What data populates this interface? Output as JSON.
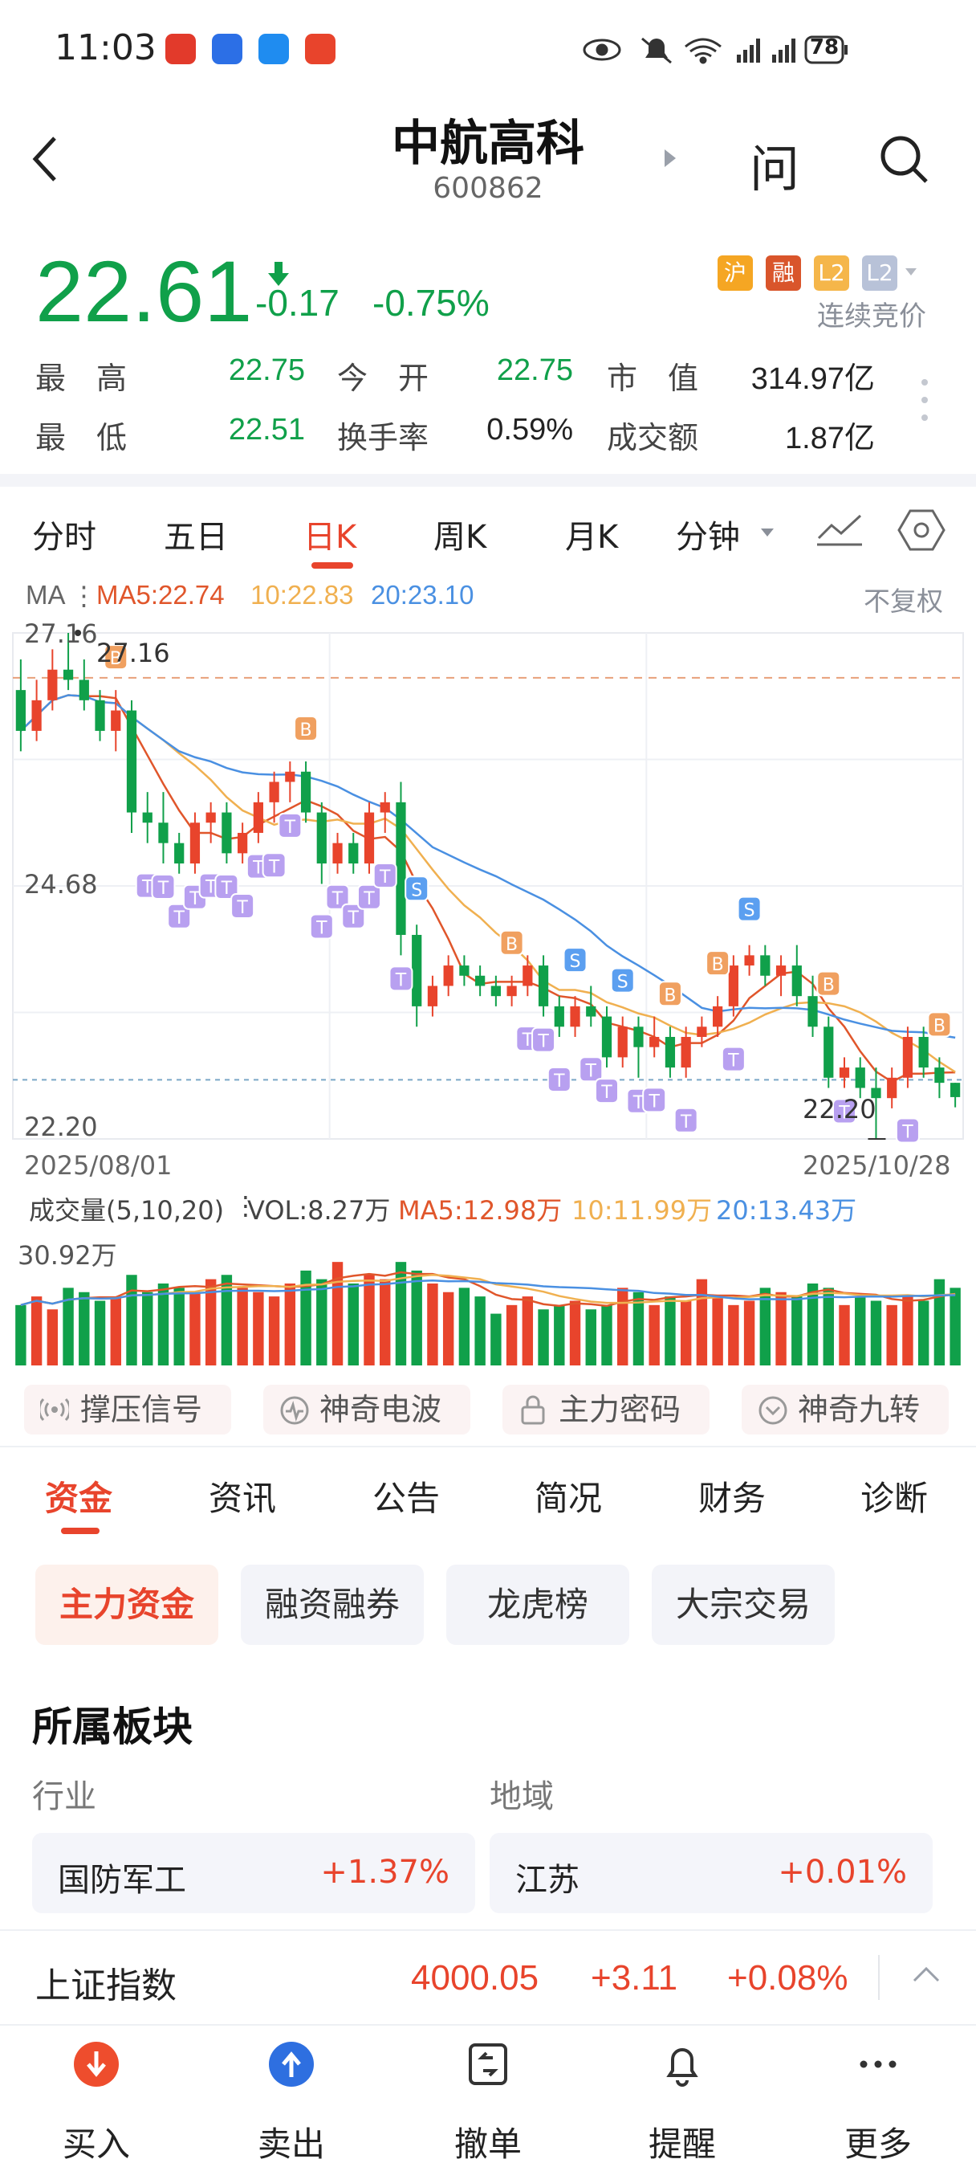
{
  "status_bar": {
    "time": "11:03",
    "battery": "78"
  },
  "header": {
    "title": "中航高科",
    "code": "600862",
    "ask_icon_label": "问"
  },
  "quote": {
    "price": "22.61",
    "change": "-0.17",
    "change_pct": "-0.75%",
    "badges": [
      "沪",
      "融",
      "L2",
      "L2"
    ],
    "auction_status": "连续竞价",
    "stats": [
      {
        "label": "最　高",
        "value": "22.75"
      },
      {
        "label": "今　开",
        "value": "22.75"
      },
      {
        "label": "市　值",
        "value": "314.97亿"
      },
      {
        "label": "最　低",
        "value": "22.51"
      },
      {
        "label": "换手率",
        "value": "0.59%"
      },
      {
        "label": "成交额",
        "value": "1.87亿"
      }
    ]
  },
  "chart_tabs": [
    "分时",
    "五日",
    "日K",
    "周K",
    "月K",
    "分钟"
  ],
  "active_chart_tab": "日K",
  "ma_legend": {
    "prefix": "MA",
    "ma5": "MA5:22.74",
    "ma10": "10:22.83",
    "ma20": "20:23.10",
    "adjust": "不复权"
  },
  "colors": {
    "up": "#e8442c",
    "down": "#10a04a",
    "ma5": "#e0562b",
    "ma10": "#f0b050",
    "ma20": "#4a90e2",
    "accent": "#e8442c"
  },
  "chart_data": {
    "type": "candlestick",
    "y_labels": [
      "27.16",
      "24.68",
      "22.20"
    ],
    "high_marker": "27.16",
    "low_marker": "22.20",
    "x_labels": [
      "2025/08/01",
      "2025/10/28"
    ],
    "ylim": [
      22.2,
      27.16
    ],
    "ohlc": [
      [
        26.6,
        26.9,
        26.0,
        26.2
      ],
      [
        26.2,
        26.7,
        26.1,
        26.5
      ],
      [
        26.5,
        27.0,
        26.4,
        26.8
      ],
      [
        26.8,
        27.16,
        26.6,
        26.7
      ],
      [
        26.7,
        26.9,
        26.4,
        26.5
      ],
      [
        26.5,
        26.6,
        26.1,
        26.2
      ],
      [
        26.2,
        26.6,
        26.0,
        26.4
      ],
      [
        26.4,
        26.5,
        25.2,
        25.4
      ],
      [
        25.4,
        25.6,
        25.1,
        25.3
      ],
      [
        25.3,
        25.6,
        24.9,
        25.1
      ],
      [
        25.1,
        25.2,
        24.8,
        24.9
      ],
      [
        24.9,
        25.4,
        24.8,
        25.3
      ],
      [
        25.3,
        25.5,
        25.1,
        25.4
      ],
      [
        25.4,
        25.5,
        24.9,
        25.0
      ],
      [
        25.0,
        25.3,
        24.9,
        25.2
      ],
      [
        25.2,
        25.6,
        25.1,
        25.5
      ],
      [
        25.5,
        25.8,
        25.3,
        25.7
      ],
      [
        25.7,
        25.9,
        25.5,
        25.8
      ],
      [
        25.8,
        25.9,
        25.3,
        25.4
      ],
      [
        25.4,
        25.5,
        24.7,
        24.9
      ],
      [
        24.9,
        25.2,
        24.8,
        25.1
      ],
      [
        25.1,
        25.2,
        24.8,
        24.9
      ],
      [
        24.9,
        25.5,
        24.8,
        25.4
      ],
      [
        25.4,
        25.6,
        25.2,
        25.5
      ],
      [
        25.5,
        25.7,
        24.0,
        24.2
      ],
      [
        24.2,
        24.3,
        23.3,
        23.5
      ],
      [
        23.5,
        23.8,
        23.4,
        23.7
      ],
      [
        23.7,
        24.0,
        23.6,
        23.9
      ],
      [
        23.9,
        24.0,
        23.7,
        23.8
      ],
      [
        23.8,
        23.9,
        23.6,
        23.7
      ],
      [
        23.7,
        23.8,
        23.5,
        23.6
      ],
      [
        23.6,
        23.8,
        23.5,
        23.7
      ],
      [
        23.7,
        24.0,
        23.6,
        23.9
      ],
      [
        23.9,
        24.0,
        23.4,
        23.5
      ],
      [
        23.5,
        23.6,
        23.2,
        23.3
      ],
      [
        23.3,
        23.6,
        23.2,
        23.5
      ],
      [
        23.5,
        23.7,
        23.3,
        23.4
      ],
      [
        23.4,
        23.5,
        22.9,
        23.0
      ],
      [
        23.0,
        23.4,
        22.9,
        23.3
      ],
      [
        23.3,
        23.4,
        22.8,
        23.1
      ],
      [
        23.1,
        23.4,
        23.0,
        23.2
      ],
      [
        23.2,
        23.3,
        22.8,
        22.9
      ],
      [
        22.9,
        23.3,
        22.8,
        23.2
      ],
      [
        23.2,
        23.4,
        23.1,
        23.3
      ],
      [
        23.3,
        23.6,
        23.2,
        23.5
      ],
      [
        23.5,
        24.0,
        23.4,
        23.9
      ],
      [
        23.9,
        24.1,
        23.8,
        24.0
      ],
      [
        24.0,
        24.1,
        23.7,
        23.8
      ],
      [
        23.8,
        24.0,
        23.6,
        23.9
      ],
      [
        23.9,
        24.1,
        23.5,
        23.6
      ],
      [
        23.6,
        23.8,
        23.2,
        23.3
      ],
      [
        23.3,
        23.4,
        22.7,
        22.8
      ],
      [
        22.8,
        23.0,
        22.7,
        22.9
      ],
      [
        22.9,
        23.0,
        22.6,
        22.7
      ],
      [
        22.7,
        22.9,
        22.2,
        22.6
      ],
      [
        22.6,
        22.9,
        22.5,
        22.8
      ],
      [
        22.8,
        23.3,
        22.7,
        23.2
      ],
      [
        23.2,
        23.3,
        22.8,
        22.9
      ],
      [
        22.9,
        23.0,
        22.6,
        22.75
      ],
      [
        22.75,
        22.75,
        22.51,
        22.61
      ]
    ],
    "signals": [
      {
        "i": 6,
        "type": "B"
      },
      {
        "i": 18,
        "type": "B"
      },
      {
        "i": 8,
        "type": "T"
      },
      {
        "i": 9,
        "type": "T"
      },
      {
        "i": 10,
        "type": "T"
      },
      {
        "i": 11,
        "type": "T"
      },
      {
        "i": 12,
        "type": "T"
      },
      {
        "i": 13,
        "type": "T"
      },
      {
        "i": 14,
        "type": "T"
      },
      {
        "i": 15,
        "type": "T"
      },
      {
        "i": 16,
        "type": "T"
      },
      {
        "i": 17,
        "type": "T"
      },
      {
        "i": 19,
        "type": "T"
      },
      {
        "i": 20,
        "type": "T"
      },
      {
        "i": 21,
        "type": "T"
      },
      {
        "i": 22,
        "type": "T"
      },
      {
        "i": 23,
        "type": "T"
      },
      {
        "i": 24,
        "type": "T"
      },
      {
        "i": 25,
        "type": "S"
      },
      {
        "i": 31,
        "type": "B"
      },
      {
        "i": 32,
        "type": "T"
      },
      {
        "i": 33,
        "type": "T"
      },
      {
        "i": 34,
        "type": "T"
      },
      {
        "i": 35,
        "type": "S"
      },
      {
        "i": 36,
        "type": "T"
      },
      {
        "i": 37,
        "type": "T"
      },
      {
        "i": 38,
        "type": "S"
      },
      {
        "i": 39,
        "type": "T"
      },
      {
        "i": 40,
        "type": "T"
      },
      {
        "i": 41,
        "type": "B"
      },
      {
        "i": 42,
        "type": "T"
      },
      {
        "i": 44,
        "type": "B"
      },
      {
        "i": 45,
        "type": "T"
      },
      {
        "i": 46,
        "type": "S"
      },
      {
        "i": 51,
        "type": "B"
      },
      {
        "i": 52,
        "type": "T"
      },
      {
        "i": 56,
        "type": "T"
      },
      {
        "i": 58,
        "type": "B"
      }
    ]
  },
  "volume": {
    "label": "成交量(5,10,20)",
    "vol": "VOL:8.27万",
    "ma5": "MA5:12.98万",
    "ma10": "10:11.99万",
    "ma20": "20:13.43万",
    "max_label": "30.92万",
    "values": [
      14,
      16,
      13,
      18,
      17,
      15,
      16,
      21,
      17,
      19,
      18,
      17,
      20,
      21,
      18,
      17,
      16,
      19,
      22,
      20,
      24,
      19,
      21,
      20,
      24,
      22,
      19,
      17,
      18,
      16,
      12,
      14,
      16,
      13,
      14,
      15,
      13,
      14,
      18,
      17,
      14,
      16,
      15,
      20,
      16,
      14,
      15,
      18,
      17,
      16,
      19,
      18,
      14,
      16,
      15,
      14,
      16,
      15,
      20,
      18
    ]
  },
  "indicator_pills": [
    "撑压信号",
    "神奇电波",
    "主力密码",
    "神奇九转"
  ],
  "section_tabs": [
    "资金",
    "资讯",
    "公告",
    "简况",
    "财务",
    "诊断"
  ],
  "active_section_tab": "资金",
  "sub_tabs": [
    "主力资金",
    "融资融券",
    "龙虎榜",
    "大宗交易"
  ],
  "sector": {
    "title": "所属板块",
    "industry_label": "行业",
    "region_label": "地域",
    "industry": {
      "name": "国防军工",
      "change": "+1.37%"
    },
    "region": {
      "name": "江苏",
      "change": "+0.01%"
    }
  },
  "index_ticker": {
    "name": "上证指数",
    "value": "4000.05",
    "change": "+3.11",
    "change_pct": "+0.08%"
  },
  "bottom_nav": [
    {
      "label": "买入",
      "color": "#ee4d2d"
    },
    {
      "label": "卖出",
      "color": "#2e6fe0"
    },
    {
      "label": "撤单",
      "color": "#333333"
    },
    {
      "label": "提醒",
      "color": "#333333"
    },
    {
      "label": "更多",
      "color": "#333333"
    }
  ]
}
